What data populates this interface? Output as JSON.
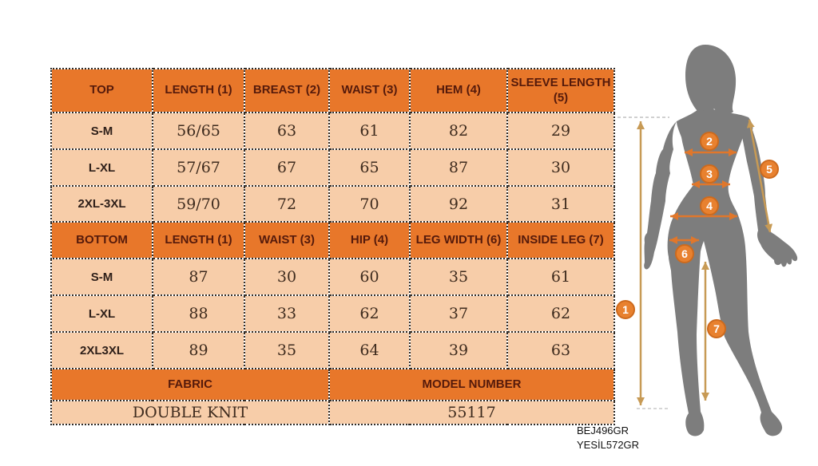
{
  "size_chart": {
    "top_section": {
      "header": [
        "TOP",
        "LENGTH (1)",
        "BREAST (2)",
        "WAIST (3)",
        "HEM (4)",
        "SLEEVE LENGTH (5)"
      ],
      "rows": [
        [
          "S-M",
          "56/65",
          "63",
          "61",
          "82",
          "29"
        ],
        [
          "L-XL",
          "57/67",
          "67",
          "65",
          "87",
          "30"
        ],
        [
          "2XL-3XL",
          "59/70",
          "72",
          "70",
          "92",
          "31"
        ]
      ]
    },
    "bottom_section": {
      "header": [
        "BOTTOM",
        "LENGTH (1)",
        "WAIST (3)",
        "HIP (4)",
        "LEG WIDTH (6)",
        "INSIDE LEG (7)"
      ],
      "rows": [
        [
          "S-M",
          "87",
          "30",
          "60",
          "35",
          "61"
        ],
        [
          "L-XL",
          "88",
          "33",
          "62",
          "37",
          "62"
        ],
        [
          "2XL3XL",
          "89",
          "35",
          "64",
          "39",
          "63"
        ]
      ]
    },
    "info_section": {
      "header": [
        "FABRIC",
        "MODEL NUMBER"
      ],
      "row": [
        "DOUBLE KNIT",
        "55117"
      ]
    }
  },
  "figure": {
    "description": "female-silhouette-with-measurement-arrows",
    "markers": [
      {
        "label": "1"
      },
      {
        "label": "2"
      },
      {
        "label": "3"
      },
      {
        "label": "4"
      },
      {
        "label": "5"
      },
      {
        "label": "6"
      },
      {
        "label": "7"
      }
    ]
  },
  "product_codes": [
    "BEJ496GR",
    "YESİL572GR"
  ],
  "colors": {
    "header_orange": "#e8772a",
    "cell_peach": "#f7cda9",
    "header_text": "#551a0b",
    "value_text": "#3e2b1e",
    "border_dotted": "#2e2a26",
    "silhouette_gray": "#7d7d7d",
    "marker_fill": "#e8812f",
    "marker_ring": "#cd6a1d",
    "arrow_orange": "#e0772b",
    "arrow_tan": "#c79a55",
    "dash_gray": "#c0c0c0"
  }
}
